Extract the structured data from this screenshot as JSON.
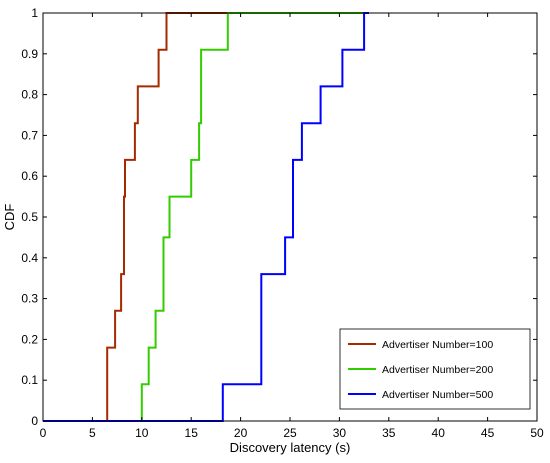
{
  "chart_data": {
    "type": "line",
    "step": true,
    "xlabel": "Discovery latency (s)",
    "ylabel": "CDF",
    "xlim": [
      0,
      50
    ],
    "ylim": [
      0,
      1
    ],
    "x_ticks": [
      0,
      5,
      10,
      15,
      20,
      25,
      30,
      35,
      40,
      45,
      50
    ],
    "y_ticks": [
      0,
      0.1,
      0.2,
      0.3,
      0.4,
      0.5,
      0.6,
      0.7,
      0.8,
      0.9,
      1
    ],
    "x_tick_labels": [
      "0",
      "5",
      "10",
      "15",
      "20",
      "25",
      "30",
      "35",
      "40",
      "45",
      "50"
    ],
    "y_tick_labels": [
      "0",
      "0.1",
      "0.2",
      "0.3",
      "0.4",
      "0.5",
      "0.6",
      "0.7",
      "0.8",
      "0.9",
      "1"
    ],
    "grid": false,
    "legend_position": "bottom-right",
    "series": [
      {
        "name": "Advertiser Number=100",
        "color": "#a52a00",
        "x": [
          0,
          6.5,
          6.5,
          7.3,
          7.3,
          7.9,
          7.9,
          8.2,
          8.2,
          8.3,
          8.3,
          9.3,
          9.3,
          9.6,
          9.6,
          11.7,
          11.7,
          12.5,
          12.5,
          19
        ],
        "y": [
          0,
          0,
          0.18,
          0.18,
          0.27,
          0.27,
          0.36,
          0.36,
          0.55,
          0.55,
          0.64,
          0.64,
          0.73,
          0.73,
          0.82,
          0.82,
          0.91,
          0.91,
          1,
          1
        ]
      },
      {
        "name": "Advertiser Number=200",
        "color": "#33cc00",
        "x": [
          0,
          10,
          10,
          10.7,
          10.7,
          11.4,
          11.4,
          12.2,
          12.2,
          12.8,
          12.8,
          15,
          15,
          15.8,
          15.8,
          16,
          16,
          16.2,
          16.2,
          18.7,
          18.7,
          33
        ],
        "y": [
          0,
          0,
          0.09,
          0.09,
          0.18,
          0.18,
          0.27,
          0.27,
          0.45,
          0.45,
          0.55,
          0.55,
          0.64,
          0.64,
          0.73,
          0.73,
          0.91,
          0.91,
          0.91,
          0.91,
          1,
          1
        ]
      },
      {
        "name": "Advertiser Number=500",
        "color": "#0000ff",
        "x": [
          0,
          18.2,
          18.2,
          22.1,
          22.1,
          24.5,
          24.5,
          25.3,
          25.3,
          26.2,
          26.2,
          28.1,
          28.1,
          30.3,
          30.3,
          32.5,
          32.5,
          33
        ],
        "y": [
          0,
          0,
          0.09,
          0.09,
          0.36,
          0.36,
          0.45,
          0.45,
          0.64,
          0.64,
          0.73,
          0.73,
          0.82,
          0.82,
          0.91,
          0.91,
          1,
          1
        ]
      }
    ]
  }
}
